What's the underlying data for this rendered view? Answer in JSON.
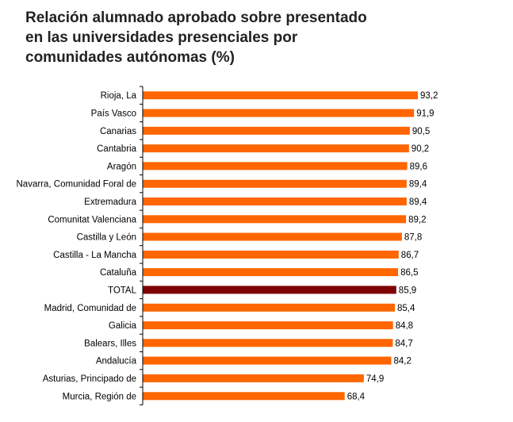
{
  "chart_data": {
    "type": "bar",
    "orientation": "horizontal",
    "title_lines": [
      "Relación alumnado aprobado sobre presentado",
      "en las universidades presenciales por",
      "comunidades autónomas (%)"
    ],
    "categories": [
      "Rioja, La",
      "País Vasco",
      "Canarias",
      "Cantabria",
      "Aragón",
      "Navarra, Comunidad Foral de",
      "Extremadura",
      "Comunitat Valenciana",
      "Castilla y León",
      "Castilla - La Mancha",
      "Cataluña",
      "TOTAL",
      "Madrid, Comunidad de",
      "Galicia",
      "Balears, Illes",
      "Andalucía",
      "Asturias, Principado de",
      "Murcia, Región de"
    ],
    "values": [
      93.2,
      91.9,
      90.5,
      90.2,
      89.6,
      89.4,
      89.4,
      89.2,
      87.8,
      86.7,
      86.5,
      85.9,
      85.4,
      84.8,
      84.7,
      84.2,
      74.9,
      68.4
    ],
    "value_labels": [
      "93,2",
      "91,9",
      "90,5",
      "90,2",
      "89,6",
      "89,4",
      "89,4",
      "89,2",
      "87,8",
      "86,7",
      "86,5",
      "85,9",
      "85,4",
      "84,8",
      "84,7",
      "84,2",
      "74,9",
      "68,4"
    ],
    "highlight_category": "TOTAL",
    "xlim": [
      0,
      93.2
    ],
    "grid": false,
    "legend": "none",
    "colors": {
      "bar": "#ff6600",
      "highlight": "#7f0000",
      "axis": "#000000"
    }
  }
}
